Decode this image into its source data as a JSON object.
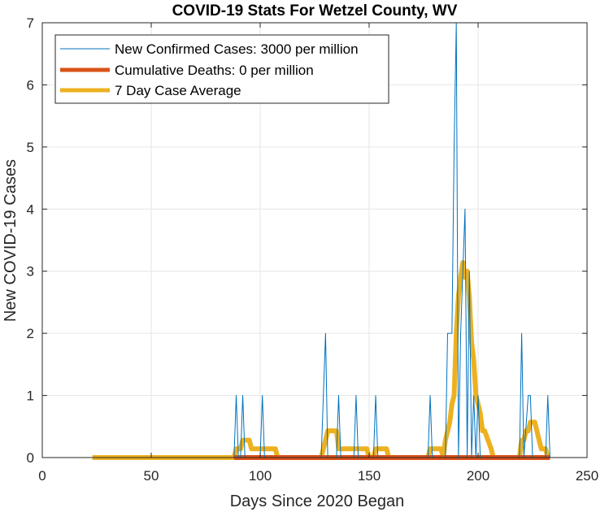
{
  "chart_data": {
    "type": "line",
    "title": "COVID-19 Stats For Wetzel County, WV",
    "xlabel": "Days Since 2020 Began",
    "ylabel": "New COVID-19 Cases",
    "xlim": [
      0,
      250
    ],
    "ylim": [
      0,
      7
    ],
    "xticks": [
      0,
      50,
      100,
      150,
      200,
      250
    ],
    "yticks": [
      0,
      1,
      2,
      3,
      4,
      5,
      6,
      7
    ],
    "grid": true,
    "legend_position": "top-left",
    "series": [
      {
        "name": "New Confirmed Cases: 3000 per million",
        "color": "#0072BD",
        "style": "thin",
        "x": [
          23,
          88,
          89,
          90,
          91,
          92,
          93,
          100,
          101,
          102,
          128,
          129,
          130,
          131,
          135,
          136,
          137,
          143,
          144,
          145,
          152,
          153,
          154,
          177,
          178,
          179,
          185,
          186,
          187,
          188,
          189,
          190,
          191,
          192,
          193,
          194,
          195,
          196,
          197,
          198,
          199,
          200,
          201,
          219,
          220,
          221,
          223,
          224,
          225,
          226,
          231,
          232,
          233
        ],
        "y": [
          0,
          0,
          1,
          0,
          0,
          1,
          0,
          0,
          1,
          0,
          0,
          1,
          2,
          0,
          0,
          1,
          0,
          0,
          1,
          0,
          0,
          1,
          0,
          0,
          1,
          0,
          0,
          2,
          2,
          2,
          5,
          7,
          0,
          2,
          3,
          4,
          0,
          3,
          0,
          1,
          0,
          1,
          0,
          0,
          2,
          0,
          1,
          1,
          0,
          0,
          0,
          1,
          0
        ]
      },
      {
        "name": "Cumulative Deaths: 0 per million",
        "color": "#D95319",
        "style": "thick",
        "x": [
          88,
          233
        ],
        "y": [
          0,
          0
        ]
      },
      {
        "name": "7 Day Case Average",
        "color": "#EDB120",
        "style": "thick",
        "x": [
          23,
          88,
          89,
          91,
          92,
          95,
          96,
          99,
          100,
          107,
          108,
          128,
          129,
          130,
          131,
          135,
          136,
          141,
          142,
          149,
          150,
          152,
          153,
          158,
          159,
          177,
          178,
          183,
          184,
          185,
          187,
          188,
          189,
          190,
          191,
          192,
          193,
          194,
          195,
          196,
          197,
          198,
          199,
          200,
          201,
          202,
          203,
          206,
          207,
          219,
          220,
          221,
          222,
          223,
          224,
          225,
          226,
          227,
          228,
          229,
          231,
          232
        ],
        "y": [
          0,
          0,
          0.14,
          0.14,
          0.28,
          0.28,
          0.14,
          0.14,
          0.14,
          0.14,
          0,
          0,
          0.14,
          0.28,
          0.43,
          0.43,
          0.14,
          0.14,
          0.14,
          0.14,
          0,
          0,
          0.14,
          0.14,
          0,
          0,
          0.14,
          0.14,
          0,
          0.28,
          0.57,
          0.86,
          1.0,
          2.0,
          2.6,
          2.9,
          3.14,
          2.9,
          3.0,
          2.57,
          1.86,
          1.57,
          1.0,
          0.86,
          0.71,
          0.43,
          0.43,
          0.14,
          0,
          0,
          0.28,
          0.28,
          0.43,
          0.43,
          0.57,
          0.57,
          0.57,
          0.43,
          0.28,
          0.14,
          0.14,
          0
        ]
      }
    ]
  }
}
